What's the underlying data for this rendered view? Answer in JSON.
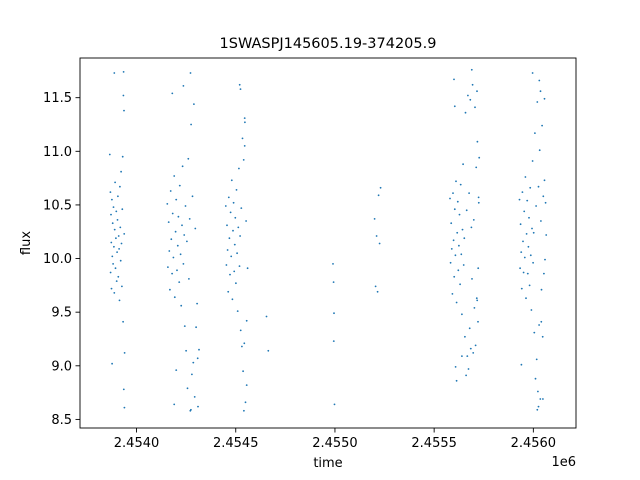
{
  "chart_data": {
    "type": "scatter",
    "title": "1SWASPJ145605.19-374205.9",
    "xlabel": "time",
    "ylabel": "flux",
    "x_offset_label": "1e6",
    "xlim": [
      2453715,
      2456215
    ],
    "ylim": [
      8.42,
      11.87
    ],
    "x_ticks": [
      2454000,
      2454500,
      2455000,
      2455500,
      2456000
    ],
    "x_tick_labels": [
      "2.4540",
      "2.4545",
      "2.4550",
      "2.4555",
      "2.4560"
    ],
    "y_ticks": [
      8.5,
      9.0,
      9.5,
      10.0,
      10.5,
      11.0,
      11.5
    ],
    "y_tick_labels": [
      "8.5",
      "9.0",
      "9.5",
      "10.0",
      "10.5",
      "11.0",
      "11.5"
    ],
    "grid": false,
    "marker_color": "#1f77b4",
    "series": [
      {
        "points": [
          [
            2453868,
            10.62
          ],
          [
            2453869,
            9.87
          ],
          [
            2453871,
            10.41
          ],
          [
            2453873,
            10.15
          ],
          [
            2453874,
            9.72
          ],
          [
            2453876,
            10.55
          ],
          [
            2453878,
            10.02
          ],
          [
            2453880,
            10.33
          ],
          [
            2453882,
            9.95
          ],
          [
            2453884,
            10.48
          ],
          [
            2453886,
            10.11
          ],
          [
            2453888,
            9.68
          ],
          [
            2453890,
            10.27
          ],
          [
            2453892,
            10.71
          ],
          [
            2453894,
            9.91
          ],
          [
            2453896,
            10.19
          ],
          [
            2453898,
            10.44
          ],
          [
            2453900,
            9.79
          ],
          [
            2453902,
            10.06
          ],
          [
            2453904,
            10.36
          ],
          [
            2453906,
            10.58
          ],
          [
            2453908,
            9.83
          ],
          [
            2453910,
            10.21
          ],
          [
            2453912,
            10.09
          ],
          [
            2453914,
            9.61
          ],
          [
            2453916,
            10.67
          ],
          [
            2453918,
            10.29
          ],
          [
            2453920,
            9.98
          ],
          [
            2453922,
            10.81
          ],
          [
            2453924,
            10.14
          ],
          [
            2453926,
            9.74
          ],
          [
            2453928,
            10.46
          ],
          [
            2453930,
            10.95
          ],
          [
            2453932,
            9.41
          ],
          [
            2453934,
            11.52
          ],
          [
            2453936,
            8.78
          ],
          [
            2453938,
            10.23
          ],
          [
            2453940,
            9.12
          ],
          [
            2453937,
            11.38
          ],
          [
            2453939,
            8.61
          ],
          [
            2453888,
            11.73
          ],
          [
            2453865,
            10.97
          ],
          [
            2453877,
            9.02
          ],
          [
            2453935,
            11.74
          ],
          [
            2454155,
            10.51
          ],
          [
            2454158,
            9.92
          ],
          [
            2454162,
            10.34
          ],
          [
            2454165,
            10.07
          ],
          [
            2454168,
            9.71
          ],
          [
            2454172,
            10.63
          ],
          [
            2454175,
            10.18
          ],
          [
            2454179,
            9.86
          ],
          [
            2454182,
            10.42
          ],
          [
            2454186,
            10.01
          ],
          [
            2454190,
            10.77
          ],
          [
            2454193,
            9.64
          ],
          [
            2454197,
            10.25
          ],
          [
            2454200,
            10.55
          ],
          [
            2454204,
            9.89
          ],
          [
            2454208,
            10.12
          ],
          [
            2454211,
            10.39
          ],
          [
            2454215,
            9.78
          ],
          [
            2454218,
            10.68
          ],
          [
            2454222,
            10.04
          ],
          [
            2454225,
            9.56
          ],
          [
            2454229,
            10.31
          ],
          [
            2454232,
            10.86
          ],
          [
            2454236,
            9.95
          ],
          [
            2454240,
            10.22
          ],
          [
            2454243,
            9.37
          ],
          [
            2454247,
            10.49
          ],
          [
            2454250,
            9.14
          ],
          [
            2454254,
            10.16
          ],
          [
            2454257,
            8.79
          ],
          [
            2454261,
            10.93
          ],
          [
            2454264,
            9.81
          ],
          [
            2454268,
            10.37
          ],
          [
            2454271,
            8.58
          ],
          [
            2454275,
            11.25
          ],
          [
            2454279,
            8.92
          ],
          [
            2454282,
            10.58
          ],
          [
            2454286,
            9.03
          ],
          [
            2454289,
            11.44
          ],
          [
            2454293,
            8.71
          ],
          [
            2454296,
            10.28
          ],
          [
            2454300,
            9.36
          ],
          [
            2454180,
            11.54
          ],
          [
            2454236,
            11.61
          ],
          [
            2454272,
            11.73
          ],
          [
            2454274,
            8.59
          ],
          [
            2454305,
            9.58
          ],
          [
            2454308,
            9.07
          ],
          [
            2454310,
            8.62
          ],
          [
            2454315,
            9.15
          ],
          [
            2454190,
            8.64
          ],
          [
            2454200,
            8.96
          ],
          [
            2454450,
            10.49
          ],
          [
            2454453,
            9.94
          ],
          [
            2454456,
            10.31
          ],
          [
            2454459,
            10.08
          ],
          [
            2454462,
            9.69
          ],
          [
            2454465,
            10.57
          ],
          [
            2454468,
            10.19
          ],
          [
            2454471,
            9.85
          ],
          [
            2454474,
            10.43
          ],
          [
            2454477,
            10.02
          ],
          [
            2454480,
            10.73
          ],
          [
            2454483,
            9.62
          ],
          [
            2454486,
            10.26
          ],
          [
            2454489,
            10.52
          ],
          [
            2454492,
            9.88
          ],
          [
            2454495,
            10.13
          ],
          [
            2454498,
            10.38
          ],
          [
            2454501,
            9.77
          ],
          [
            2454504,
            10.64
          ],
          [
            2454507,
            10.05
          ],
          [
            2454510,
            9.51
          ],
          [
            2454513,
            10.29
          ],
          [
            2454516,
            10.84
          ],
          [
            2454519,
            9.93
          ],
          [
            2454522,
            10.21
          ],
          [
            2454525,
            9.33
          ],
          [
            2454528,
            10.47
          ],
          [
            2454531,
            9.18
          ],
          [
            2454534,
            11.12
          ],
          [
            2454537,
            8.95
          ],
          [
            2454540,
            10.92
          ],
          [
            2454543,
            9.21
          ],
          [
            2454546,
            11.27
          ],
          [
            2454549,
            8.66
          ],
          [
            2454552,
            10.35
          ],
          [
            2454555,
            9.42
          ],
          [
            2454520,
            11.62
          ],
          [
            2454524,
            11.58
          ],
          [
            2454541,
            8.58
          ],
          [
            2454545,
            11.05
          ],
          [
            2454555,
            8.82
          ],
          [
            2454545,
            11.31
          ],
          [
            2454560,
            9.91
          ],
          [
            2454655,
            9.46
          ],
          [
            2454664,
            9.14
          ],
          [
            2454990,
            9.95
          ],
          [
            2454993,
            9.78
          ],
          [
            2454994,
            9.23
          ],
          [
            2454995,
            9.49
          ],
          [
            2454998,
            8.64
          ],
          [
            2455200,
            10.37
          ],
          [
            2455205,
            9.74
          ],
          [
            2455210,
            10.21
          ],
          [
            2455215,
            9.69
          ],
          [
            2455220,
            10.59
          ],
          [
            2455225,
            10.14
          ],
          [
            2455230,
            10.66
          ],
          [
            2455580,
            10.56
          ],
          [
            2455583,
            9.96
          ],
          [
            2455586,
            10.33
          ],
          [
            2455589,
            10.09
          ],
          [
            2455592,
            9.67
          ],
          [
            2455595,
            10.61
          ],
          [
            2455598,
            10.17
          ],
          [
            2455601,
            9.83
          ],
          [
            2455604,
            10.46
          ],
          [
            2455607,
            10.03
          ],
          [
            2455610,
            10.72
          ],
          [
            2455613,
            9.59
          ],
          [
            2455616,
            10.24
          ],
          [
            2455619,
            10.53
          ],
          [
            2455622,
            9.89
          ],
          [
            2455625,
            10.12
          ],
          [
            2455628,
            10.41
          ],
          [
            2455631,
            9.76
          ],
          [
            2455634,
            10.69
          ],
          [
            2455637,
            10.04
          ],
          [
            2455640,
            9.48
          ],
          [
            2455643,
            10.27
          ],
          [
            2455646,
            10.88
          ],
          [
            2455649,
            9.94
          ],
          [
            2455652,
            10.19
          ],
          [
            2455655,
            9.27
          ],
          [
            2455658,
            11.36
          ],
          [
            2455661,
            8.91
          ],
          [
            2455664,
            10.45
          ],
          [
            2455667,
            9.09
          ],
          [
            2455670,
            11.52
          ],
          [
            2455673,
            8.97
          ],
          [
            2455676,
            10.61
          ],
          [
            2455679,
            9.35
          ],
          [
            2455682,
            11.48
          ],
          [
            2455685,
            9.16
          ],
          [
            2455688,
            10.29
          ],
          [
            2455691,
            9.81
          ],
          [
            2455694,
            11.62
          ],
          [
            2455697,
            9.12
          ],
          [
            2455700,
            10.36
          ],
          [
            2455703,
            9.54
          ],
          [
            2455706,
            11.41
          ],
          [
            2455709,
            9.19
          ],
          [
            2455712,
            10.85
          ],
          [
            2455715,
            9.63
          ],
          [
            2455718,
            11.09
          ],
          [
            2455721,
            9.41
          ],
          [
            2455724,
            10.57
          ],
          [
            2455727,
            10.94
          ],
          [
            2455600,
            11.67
          ],
          [
            2455604,
            11.42
          ],
          [
            2455613,
            8.86
          ],
          [
            2455690,
            11.76
          ],
          [
            2455716,
            11.56
          ],
          [
            2455717,
            9.61
          ],
          [
            2455725,
            10.52
          ],
          [
            2455640,
            9.09
          ],
          [
            2455608,
            8.99
          ],
          [
            2455722,
            9.91
          ],
          [
            2455930,
            10.55
          ],
          [
            2455933,
            9.91
          ],
          [
            2455936,
            10.32
          ],
          [
            2455939,
            10.06
          ],
          [
            2455942,
            9.72
          ],
          [
            2455945,
            10.62
          ],
          [
            2455948,
            10.16
          ],
          [
            2455951,
            9.87
          ],
          [
            2455954,
            10.44
          ],
          [
            2455957,
            10.01
          ],
          [
            2455960,
            10.76
          ],
          [
            2455963,
            9.63
          ],
          [
            2455966,
            10.23
          ],
          [
            2455969,
            10.54
          ],
          [
            2455972,
            9.86
          ],
          [
            2455975,
            10.11
          ],
          [
            2455978,
            10.38
          ],
          [
            2455981,
            9.75
          ],
          [
            2455984,
            10.66
          ],
          [
            2455987,
            10.03
          ],
          [
            2455990,
            9.52
          ],
          [
            2455993,
            10.28
          ],
          [
            2455996,
            10.91
          ],
          [
            2455999,
            9.96
          ],
          [
            2456002,
            10.24
          ],
          [
            2456005,
            9.31
          ],
          [
            2456008,
            11.17
          ],
          [
            2456011,
            8.88
          ],
          [
            2456014,
            10.49
          ],
          [
            2456017,
            9.06
          ],
          [
            2456020,
            11.46
          ],
          [
            2456023,
            8.76
          ],
          [
            2456026,
            10.67
          ],
          [
            2456029,
            9.38
          ],
          [
            2456032,
            11.01
          ],
          [
            2456035,
            8.69
          ],
          [
            2456038,
            10.35
          ],
          [
            2456041,
            9.71
          ],
          [
            2456044,
            11.24
          ],
          [
            2456047,
            9.27
          ],
          [
            2456050,
            10.58
          ],
          [
            2456053,
            9.86
          ],
          [
            2456056,
            10.73
          ],
          [
            2456059,
            9.99
          ],
          [
            2456062,
            10.52
          ],
          [
            2456065,
            10.22
          ],
          [
            2455996,
            11.73
          ],
          [
            2456030,
            11.66
          ],
          [
            2456020,
            8.59
          ],
          [
            2456026,
            8.62
          ],
          [
            2456036,
            11.56
          ],
          [
            2456056,
            11.49
          ],
          [
            2456048,
            8.69
          ],
          [
            2455940,
            9.01
          ],
          [
            2456040,
            9.41
          ]
        ]
      }
    ]
  }
}
